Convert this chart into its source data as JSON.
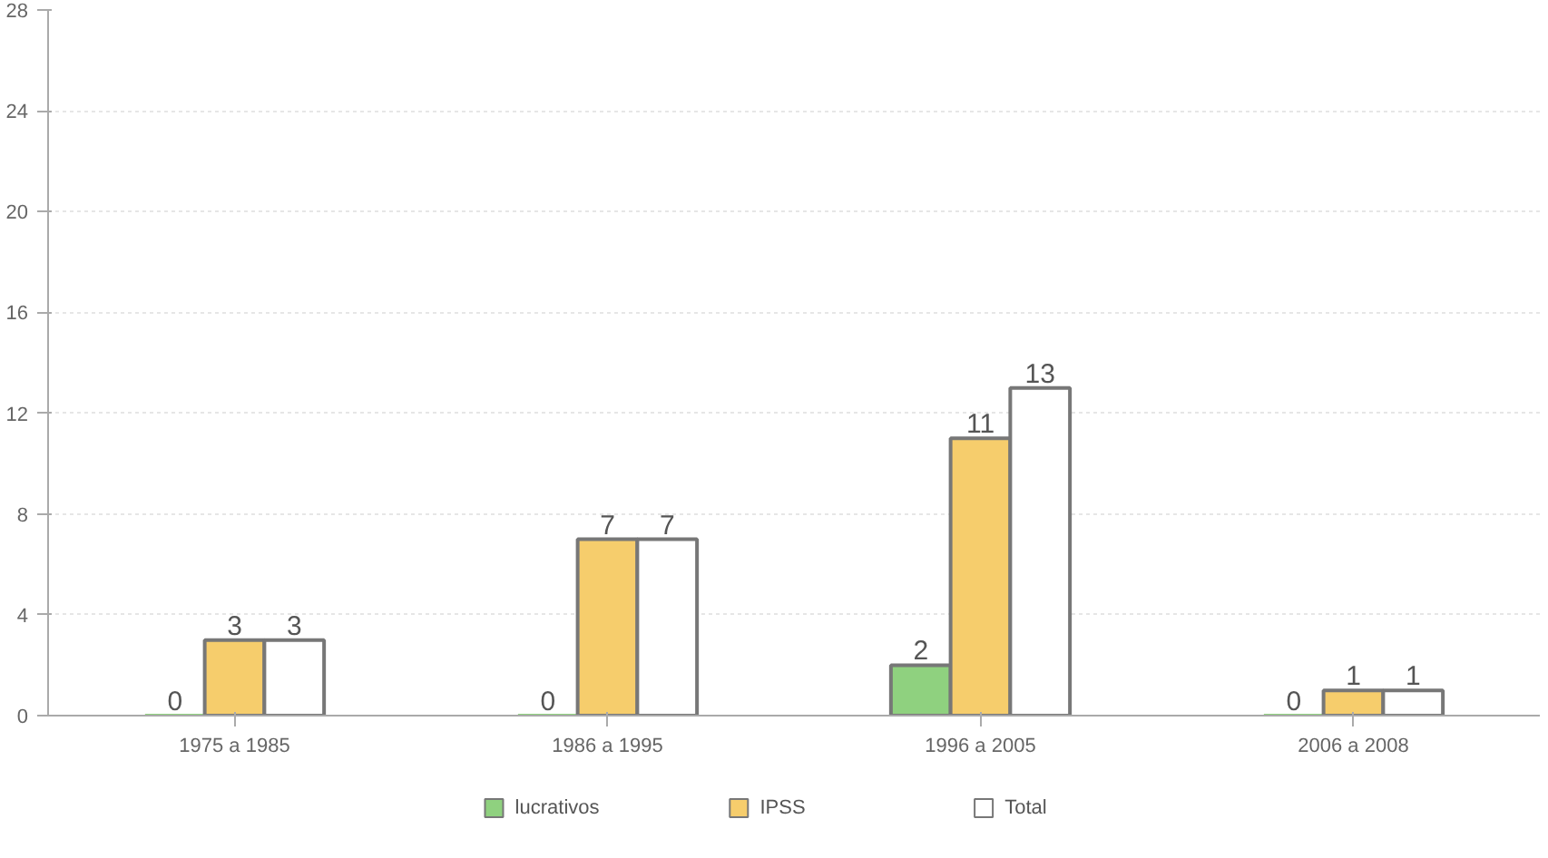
{
  "chart_data": {
    "type": "bar",
    "categories": [
      "1975 a 1985",
      "1986 a 1995",
      "1996 a 2005",
      "2006 a 2008"
    ],
    "series": [
      {
        "name": "lucrativos",
        "color": "#8fd17f",
        "values": [
          0,
          0,
          2,
          0
        ]
      },
      {
        "name": "IPSS",
        "color": "#f6cd6c",
        "values": [
          3,
          7,
          11,
          1
        ]
      },
      {
        "name": "Total",
        "color": "#ffffff",
        "values": [
          3,
          7,
          13,
          1
        ]
      }
    ],
    "ylim": [
      0,
      28
    ],
    "yticks": [
      0,
      4,
      8,
      12,
      16,
      20,
      24,
      28
    ],
    "grid": "y",
    "legend": "bottom",
    "data_labels": true
  }
}
